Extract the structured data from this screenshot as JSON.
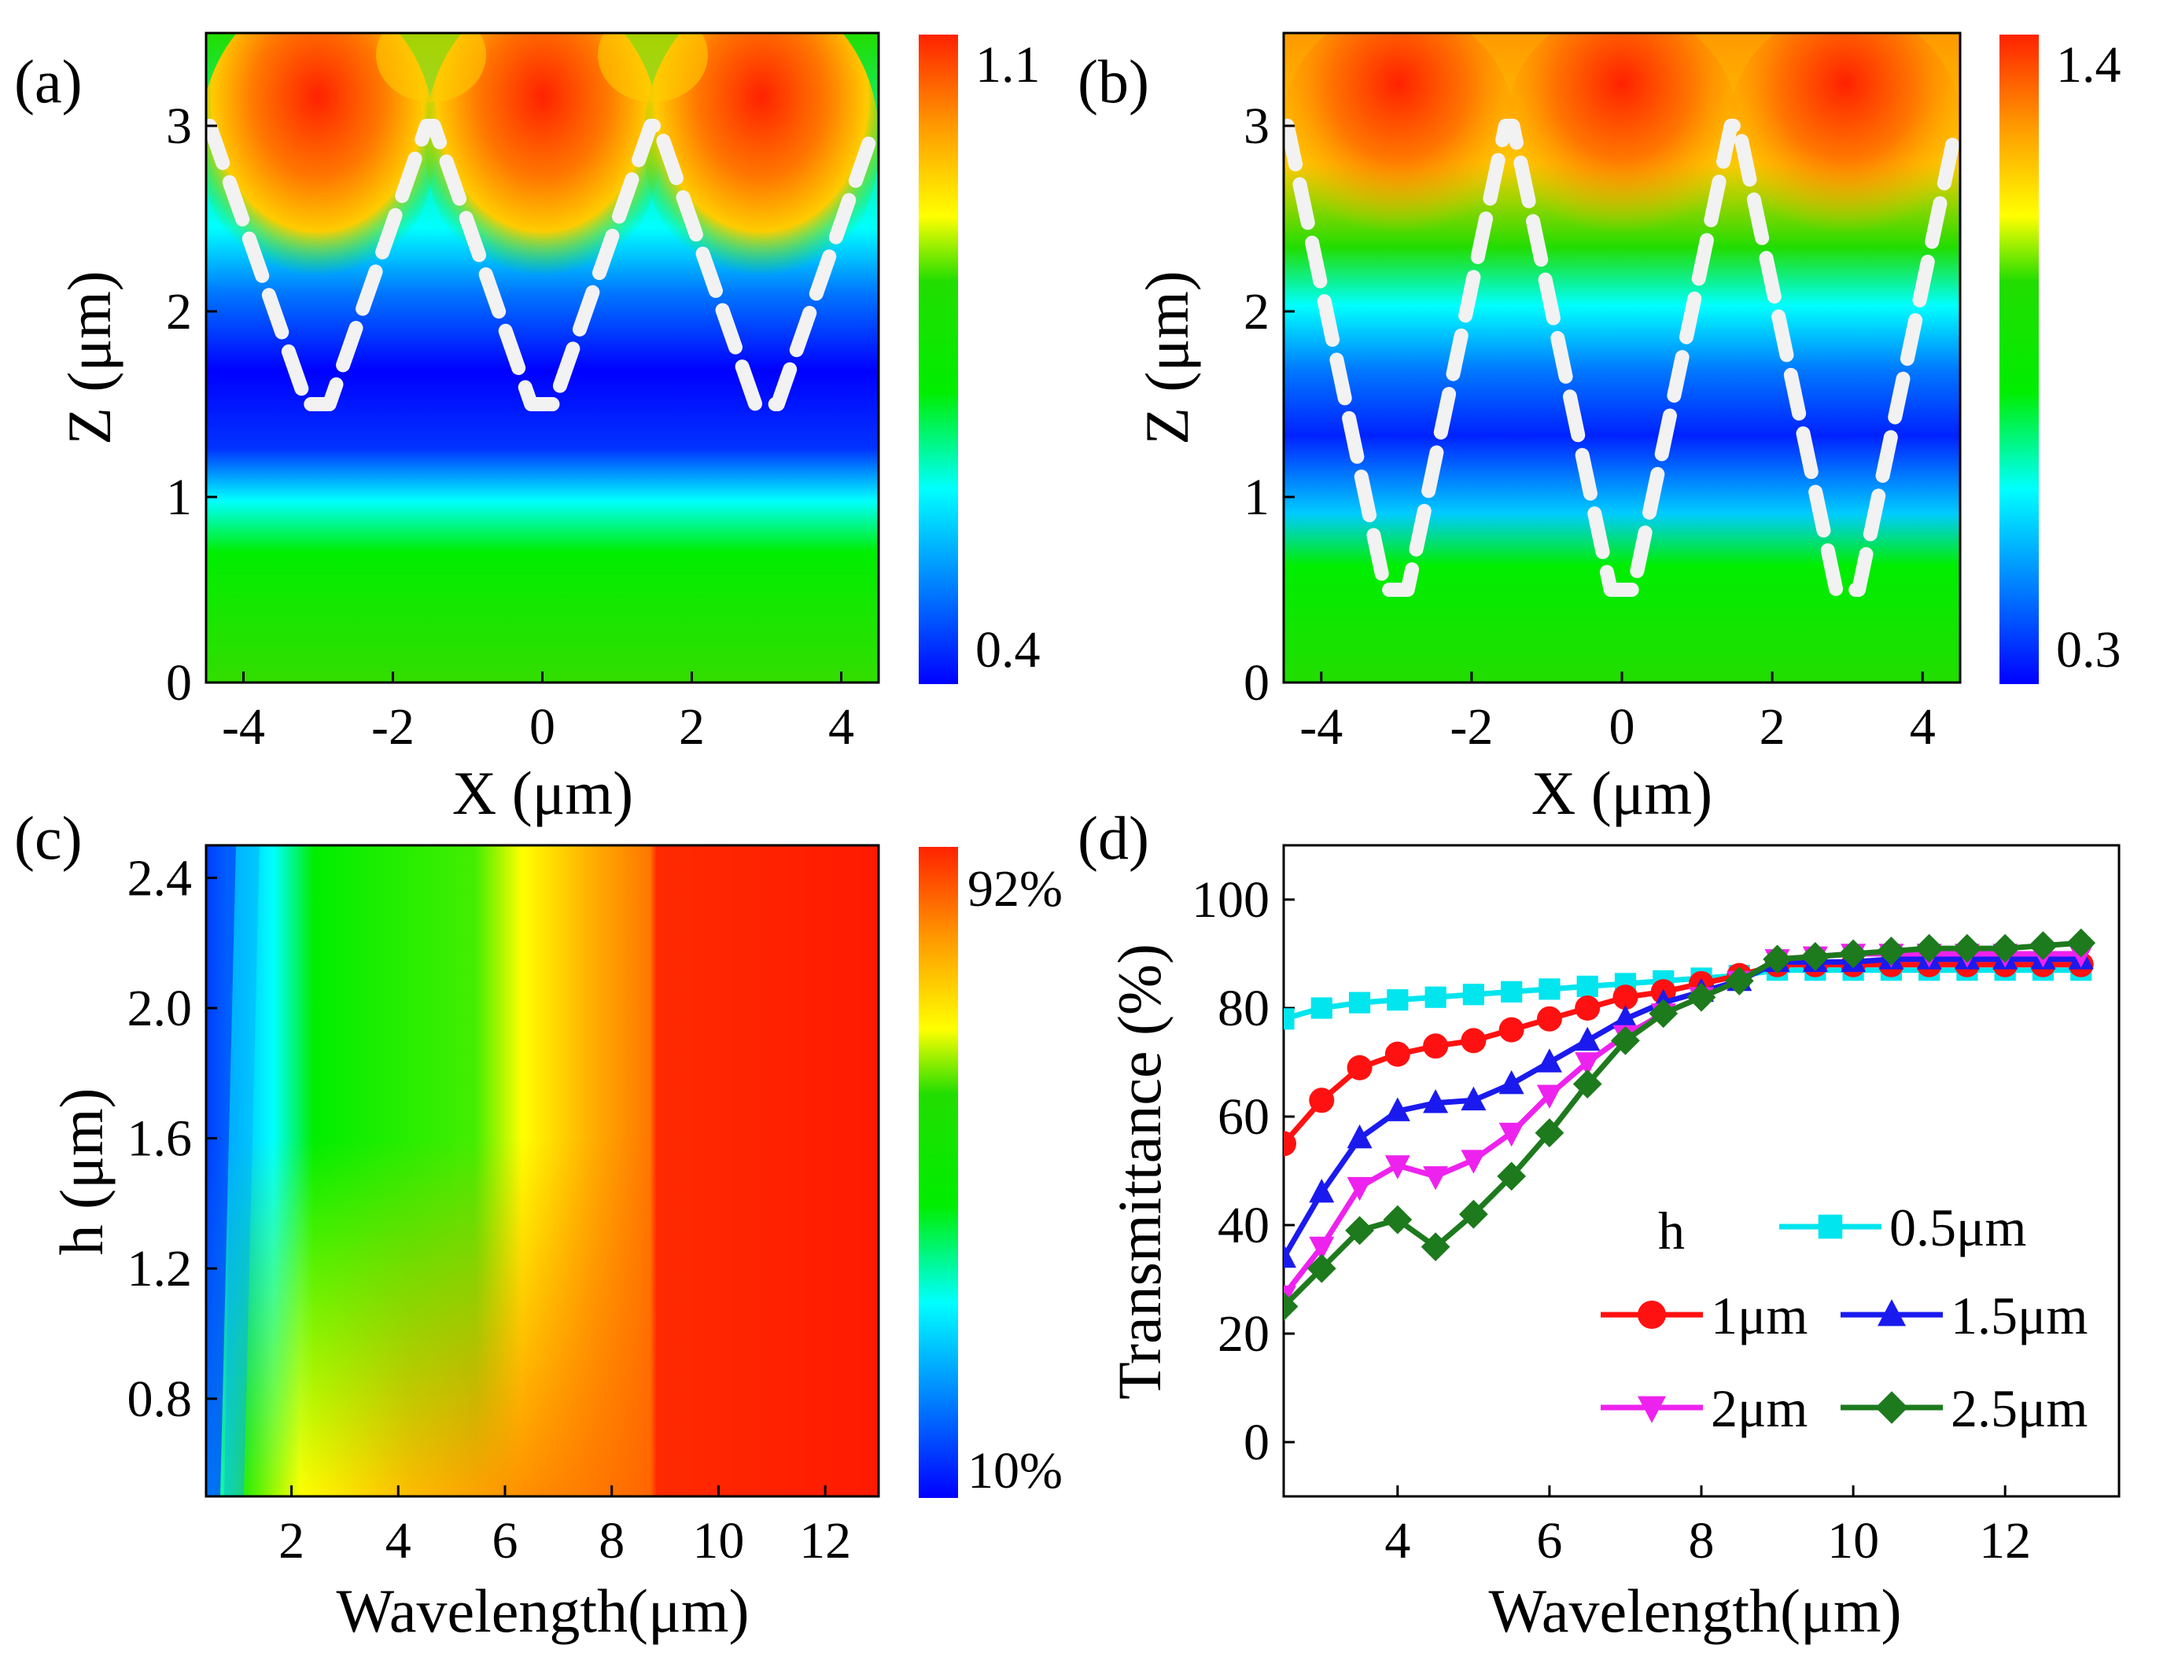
{
  "figure": {
    "panels": [
      "(a)",
      "(b)",
      "(c)",
      "(d)"
    ]
  },
  "colormap": [
    "#0000ff",
    "#0077ff",
    "#00ffff",
    "#00ee00",
    "#22dd00",
    "#ffff00",
    "#ff9900",
    "#ff2200"
  ],
  "chart_data": [
    {
      "id": "a",
      "type": "heatmap",
      "title": "(a)",
      "xlabel": "X (μm)",
      "ylabel": "Z (μm)",
      "xlim": [
        -4.5,
        4.5
      ],
      "ylim": [
        0,
        3.5
      ],
      "xticks": [
        "-4",
        "-2",
        "0",
        "2",
        "4"
      ],
      "yticks": [
        "0",
        "1",
        "2",
        "3"
      ],
      "colorbar": {
        "min_label": "0.4",
        "max_label": "1.1",
        "min": 0.4,
        "max": 1.1
      },
      "overlay": {
        "kind": "V-grooves",
        "centers": [
          -3,
          0,
          3
        ],
        "top_z": 3.0,
        "bottom_z": 1.5,
        "half_width_top": 1.45,
        "half_width_bottom": 0.15
      }
    },
    {
      "id": "b",
      "type": "heatmap",
      "title": "(b)",
      "xlabel": "X (μm)",
      "ylabel": "Z (μm)",
      "xlim": [
        -4.5,
        4.5
      ],
      "ylim": [
        0,
        3.5
      ],
      "xticks": [
        "-4",
        "-2",
        "0",
        "2",
        "4"
      ],
      "yticks": [
        "0",
        "1",
        "2",
        "3"
      ],
      "colorbar": {
        "min_label": "0.3",
        "max_label": "1.4",
        "min": 0.3,
        "max": 1.4
      },
      "overlay": {
        "kind": "V-grooves",
        "centers": [
          -3,
          0,
          3
        ],
        "top_z": 3.0,
        "bottom_z": 0.5,
        "half_width_top": 1.45,
        "half_width_bottom": 0.15
      }
    },
    {
      "id": "c",
      "type": "heatmap",
      "title": "(c)",
      "xlabel": "Wavelength(μm)",
      "ylabel": "h (μm)",
      "xlim": [
        0.4,
        13
      ],
      "ylim": [
        0.5,
        2.5
      ],
      "xticks": [
        "2",
        "4",
        "6",
        "8",
        "10",
        "12"
      ],
      "yticks": [
        "0.8",
        "1.2",
        "1.6",
        "2.0",
        "2.4"
      ],
      "colorbar": {
        "min_label": "10%",
        "max_label": "92%",
        "min": 10,
        "max": 92
      }
    },
    {
      "id": "d",
      "type": "line",
      "title": "(d)",
      "xlabel": "Wavelength(μm)",
      "ylabel": "Transmittance (%)",
      "xlim": [
        2.5,
        13.5
      ],
      "ylim": [
        -10,
        110
      ],
      "xticks": [
        "4",
        "6",
        "8",
        "10",
        "12"
      ],
      "yticks": [
        "0",
        "20",
        "40",
        "60",
        "80",
        "100"
      ],
      "legend_title": "h",
      "x": [
        2.5,
        3,
        3.5,
        4,
        4.5,
        5,
        5.5,
        6,
        6.5,
        7,
        7.5,
        8,
        8.5,
        9,
        9.5,
        10,
        10.5,
        11,
        11.5,
        12,
        12.5,
        13
      ],
      "series": [
        {
          "name": "0.5μm",
          "color": "#00e5ee",
          "marker": "square",
          "values": [
            78,
            80,
            81,
            81.5,
            82,
            82.5,
            83,
            83.5,
            84,
            84.5,
            85,
            85.5,
            86,
            87,
            87,
            87,
            87,
            87,
            87,
            87,
            87,
            87
          ]
        },
        {
          "name": "1μm",
          "color": "#ff1111",
          "marker": "circle",
          "values": [
            55,
            63,
            69,
            71.5,
            73,
            74,
            76,
            78,
            80,
            82,
            83,
            84.5,
            86,
            88,
            88,
            88,
            88,
            88,
            88,
            88,
            88,
            88
          ]
        },
        {
          "name": "1.5μm",
          "color": "#1a1aee",
          "marker": "triangle-up",
          "values": [
            34,
            46,
            56,
            61,
            62.5,
            63,
            66,
            70,
            74,
            78,
            81,
            83,
            85,
            88.5,
            88.5,
            88.5,
            89,
            89,
            89,
            89,
            89,
            89
          ]
        },
        {
          "name": "2μm",
          "color": "#ee22ee",
          "marker": "triangle-down",
          "values": [
            27,
            36,
            47,
            51,
            49,
            52,
            57,
            64,
            70,
            75,
            79,
            82,
            85,
            89,
            89.5,
            90,
            90,
            90,
            90,
            90,
            90,
            90
          ]
        },
        {
          "name": "2.5μm",
          "color": "#1d7a1d",
          "marker": "diamond",
          "values": [
            25,
            32,
            39,
            41,
            36,
            42,
            49,
            57,
            66,
            74,
            79,
            82,
            85,
            89,
            89.5,
            90,
            90.5,
            91,
            91,
            91,
            91.5,
            92
          ]
        }
      ]
    }
  ]
}
